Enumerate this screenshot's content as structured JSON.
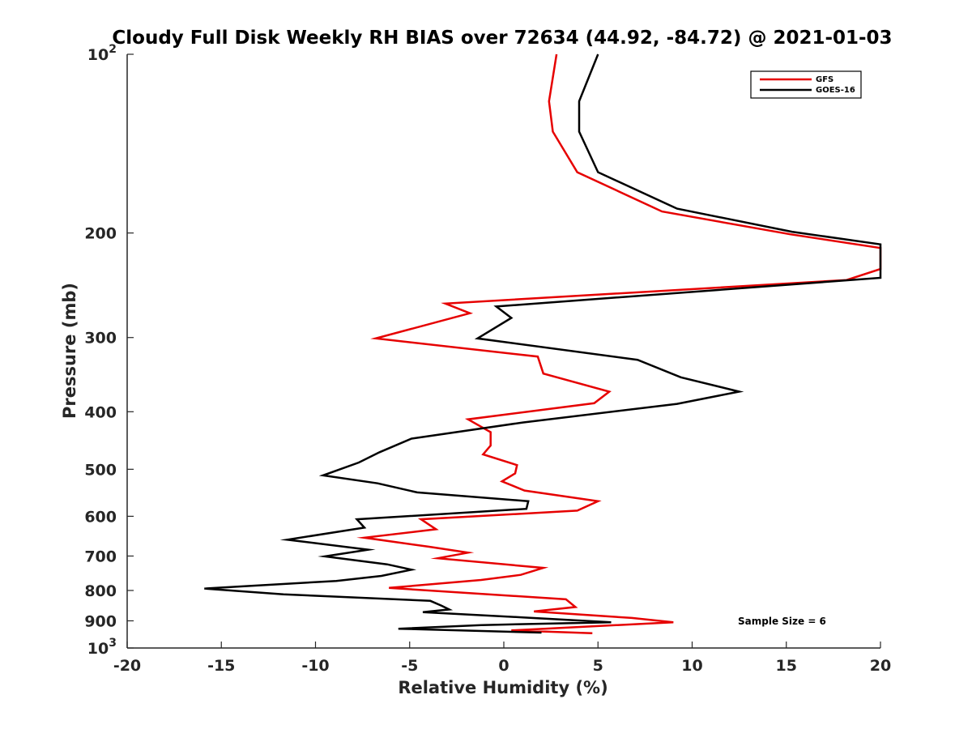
{
  "chart_data": {
    "type": "line",
    "title": "Cloudy Full Disk Weekly RH BIAS over 72634 (44.92, -84.72) @ 2021-01-03",
    "xlabel": "Relative Humidity (%)",
    "ylabel": "Pressure (mb)",
    "xlim": [
      -20,
      20
    ],
    "ylim": [
      100,
      1000
    ],
    "y_scale": "log",
    "y_reversed": true,
    "x_ticks": [
      {
        "value": -20,
        "label": "-20"
      },
      {
        "value": -15,
        "label": "-15"
      },
      {
        "value": -10,
        "label": "-10"
      },
      {
        "value": -5,
        "label": "-5"
      },
      {
        "value": 0,
        "label": "0"
      },
      {
        "value": 5,
        "label": "5"
      },
      {
        "value": 10,
        "label": "10"
      },
      {
        "value": 15,
        "label": "15"
      },
      {
        "value": 20,
        "label": "20"
      }
    ],
    "y_ticks": [
      {
        "value": 100,
        "base": "10",
        "exp": "2"
      },
      {
        "value": 200,
        "label": "200"
      },
      {
        "value": 300,
        "label": "300"
      },
      {
        "value": 400,
        "label": "400"
      },
      {
        "value": 500,
        "label": "500"
      },
      {
        "value": 600,
        "label": "600"
      },
      {
        "value": 700,
        "label": "700"
      },
      {
        "value": 800,
        "label": "800"
      },
      {
        "value": 900,
        "label": "900"
      },
      {
        "value": 1000,
        "base": "10",
        "exp": "3"
      }
    ],
    "grid": false,
    "legend_position": "top-right",
    "annotation": "Sample Size = 6",
    "series": [
      {
        "name": "GFS",
        "color": "#e60000",
        "points": [
          [
            2.8,
            100
          ],
          [
            2.4,
            120
          ],
          [
            2.6,
            135
          ],
          [
            3.9,
            158
          ],
          [
            8.4,
            184
          ],
          [
            15.2,
            201
          ],
          [
            20.0,
            212
          ],
          [
            20.0,
            230
          ],
          [
            18.2,
            240
          ],
          [
            -3.1,
            263
          ],
          [
            -1.8,
            273
          ],
          [
            -6.8,
            301
          ],
          [
            1.8,
            323
          ],
          [
            2.1,
            345
          ],
          [
            5.6,
            370
          ],
          [
            4.8,
            387
          ],
          [
            -1.9,
            412
          ],
          [
            -0.7,
            433
          ],
          [
            -0.7,
            456
          ],
          [
            -1.1,
            472
          ],
          [
            0.7,
            492
          ],
          [
            0.6,
            508
          ],
          [
            -0.1,
            524
          ],
          [
            1.1,
            543
          ],
          [
            5.0,
            566
          ],
          [
            3.9,
            587
          ],
          [
            -4.4,
            607
          ],
          [
            -3.6,
            631
          ],
          [
            -7.4,
            652
          ],
          [
            -4.0,
            675
          ],
          [
            -1.9,
            691
          ],
          [
            -3.5,
            706
          ],
          [
            2.1,
            733
          ],
          [
            0.9,
            753
          ],
          [
            -1.2,
            768
          ],
          [
            -6.1,
            792
          ],
          [
            3.3,
            828
          ],
          [
            3.8,
            853
          ],
          [
            1.6,
            868
          ],
          [
            6.8,
            890
          ],
          [
            9.0,
            905
          ],
          [
            0.4,
            934
          ],
          [
            4.7,
            944
          ]
        ]
      },
      {
        "name": "GOES-16",
        "color": "#000000",
        "points": [
          [
            5.0,
            100
          ],
          [
            4.0,
            120
          ],
          [
            4.0,
            135
          ],
          [
            5.0,
            158
          ],
          [
            9.2,
            182
          ],
          [
            15.3,
            199
          ],
          [
            20.0,
            209
          ],
          [
            20.0,
            238
          ],
          [
            -0.4,
            266
          ],
          [
            0.4,
            278
          ],
          [
            -1.4,
            301
          ],
          [
            7.1,
            327
          ],
          [
            9.4,
            350
          ],
          [
            12.5,
            370
          ],
          [
            9.2,
            388
          ],
          [
            1.0,
            417
          ],
          [
            -4.9,
            444
          ],
          [
            -6.6,
            468
          ],
          [
            -7.7,
            487
          ],
          [
            -9.6,
            512
          ],
          [
            -6.7,
            528
          ],
          [
            -4.6,
            547
          ],
          [
            1.3,
            566
          ],
          [
            1.2,
            583
          ],
          [
            -7.8,
            607
          ],
          [
            -7.4,
            627
          ],
          [
            -11.5,
            657
          ],
          [
            -7.2,
            683
          ],
          [
            -9.5,
            701
          ],
          [
            -6.2,
            723
          ],
          [
            -4.9,
            738
          ],
          [
            -6.5,
            756
          ],
          [
            -8.9,
            771
          ],
          [
            -15.9,
            794
          ],
          [
            -11.7,
            812
          ],
          [
            -3.9,
            833
          ],
          [
            -3.3,
            849
          ],
          [
            -2.9,
            861
          ],
          [
            -4.3,
            870
          ],
          [
            1.0,
            888
          ],
          [
            5.7,
            905
          ],
          [
            -1.2,
            915
          ],
          [
            -5.6,
            928
          ],
          [
            2.0,
            942
          ]
        ]
      }
    ]
  }
}
